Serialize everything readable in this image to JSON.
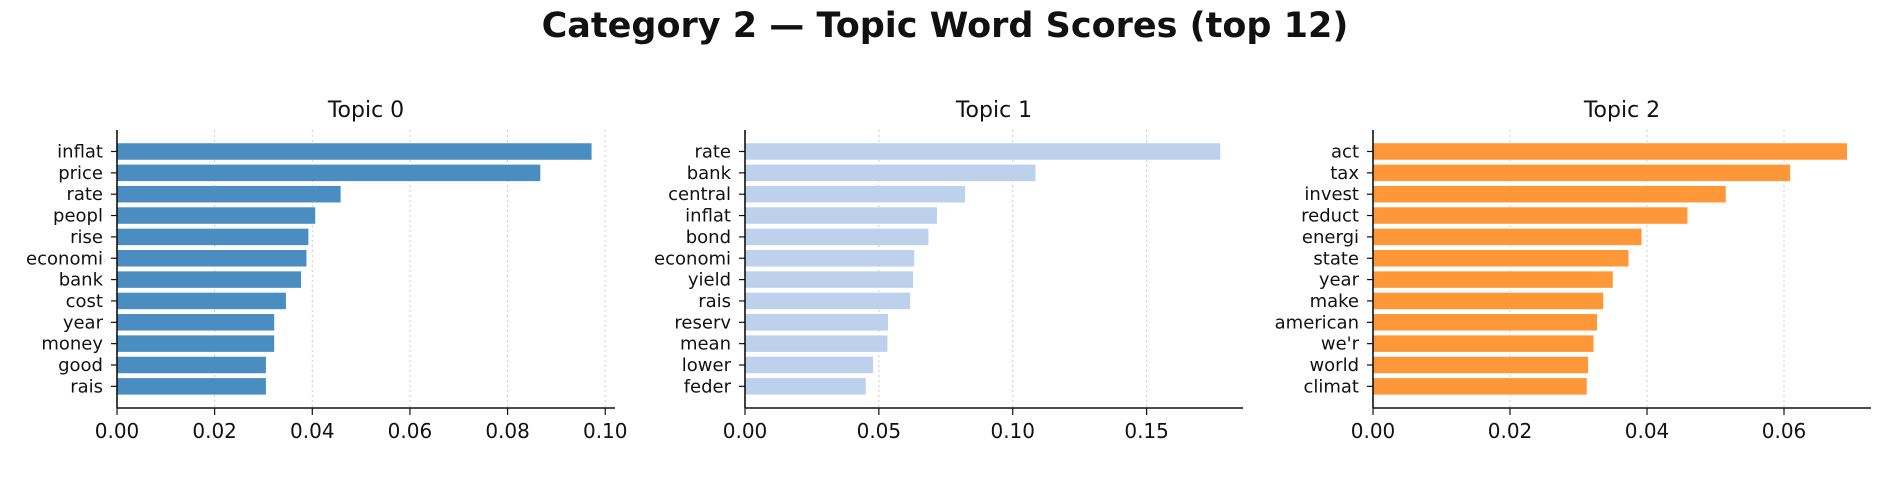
{
  "title": "Category 2 — Topic Word Scores (top 12)",
  "chart_data": [
    {
      "type": "bar",
      "orientation": "horizontal",
      "title": "Topic 0",
      "color": "#4a8ec1",
      "categories": [
        "inflat",
        "price",
        "rate",
        "peopl",
        "rise",
        "economi",
        "bank",
        "cost",
        "year",
        "money",
        "good",
        "rais"
      ],
      "values": [
        0.0972,
        0.0867,
        0.0458,
        0.0406,
        0.0392,
        0.0388,
        0.0377,
        0.0346,
        0.0322,
        0.0322,
        0.0305,
        0.0305
      ],
      "xlim": [
        0,
        0.102
      ],
      "xticks": [
        0.0,
        0.02,
        0.04,
        0.06,
        0.08,
        0.1
      ],
      "xtick_labels": [
        "0.00",
        "0.02",
        "0.04",
        "0.06",
        "0.08",
        "0.10"
      ],
      "grid": "x dotted"
    },
    {
      "type": "bar",
      "orientation": "horizontal",
      "title": "Topic 1",
      "color": "#bdd0ec",
      "categories": [
        "rate",
        "bank",
        "central",
        "inflat",
        "bond",
        "economi",
        "yield",
        "rais",
        "reserv",
        "mean",
        "lower",
        "feder"
      ],
      "values": [
        0.1775,
        0.1085,
        0.0822,
        0.0717,
        0.0685,
        0.0632,
        0.0628,
        0.0617,
        0.0534,
        0.0532,
        0.0478,
        0.0451
      ],
      "xlim": [
        0,
        0.186
      ],
      "xticks": [
        0.0,
        0.05,
        0.1,
        0.15
      ],
      "xtick_labels": [
        "0.00",
        "0.05",
        "0.10",
        "0.15"
      ],
      "grid": "x dotted"
    },
    {
      "type": "bar",
      "orientation": "horizontal",
      "title": "Topic 2",
      "color": "#fd9738",
      "categories": [
        "act",
        "tax",
        "invest",
        "reduct",
        "energi",
        "state",
        "year",
        "make",
        "american",
        "we'r",
        "world",
        "climat"
      ],
      "values": [
        0.0692,
        0.0609,
        0.0515,
        0.0459,
        0.0392,
        0.0373,
        0.035,
        0.0336,
        0.0327,
        0.0322,
        0.0314,
        0.0312
      ],
      "xlim": [
        0,
        0.0727
      ],
      "xticks": [
        0.0,
        0.02,
        0.04,
        0.06
      ],
      "xtick_labels": [
        "0.00",
        "0.02",
        "0.04",
        "0.06"
      ],
      "grid": "x dotted"
    }
  ]
}
